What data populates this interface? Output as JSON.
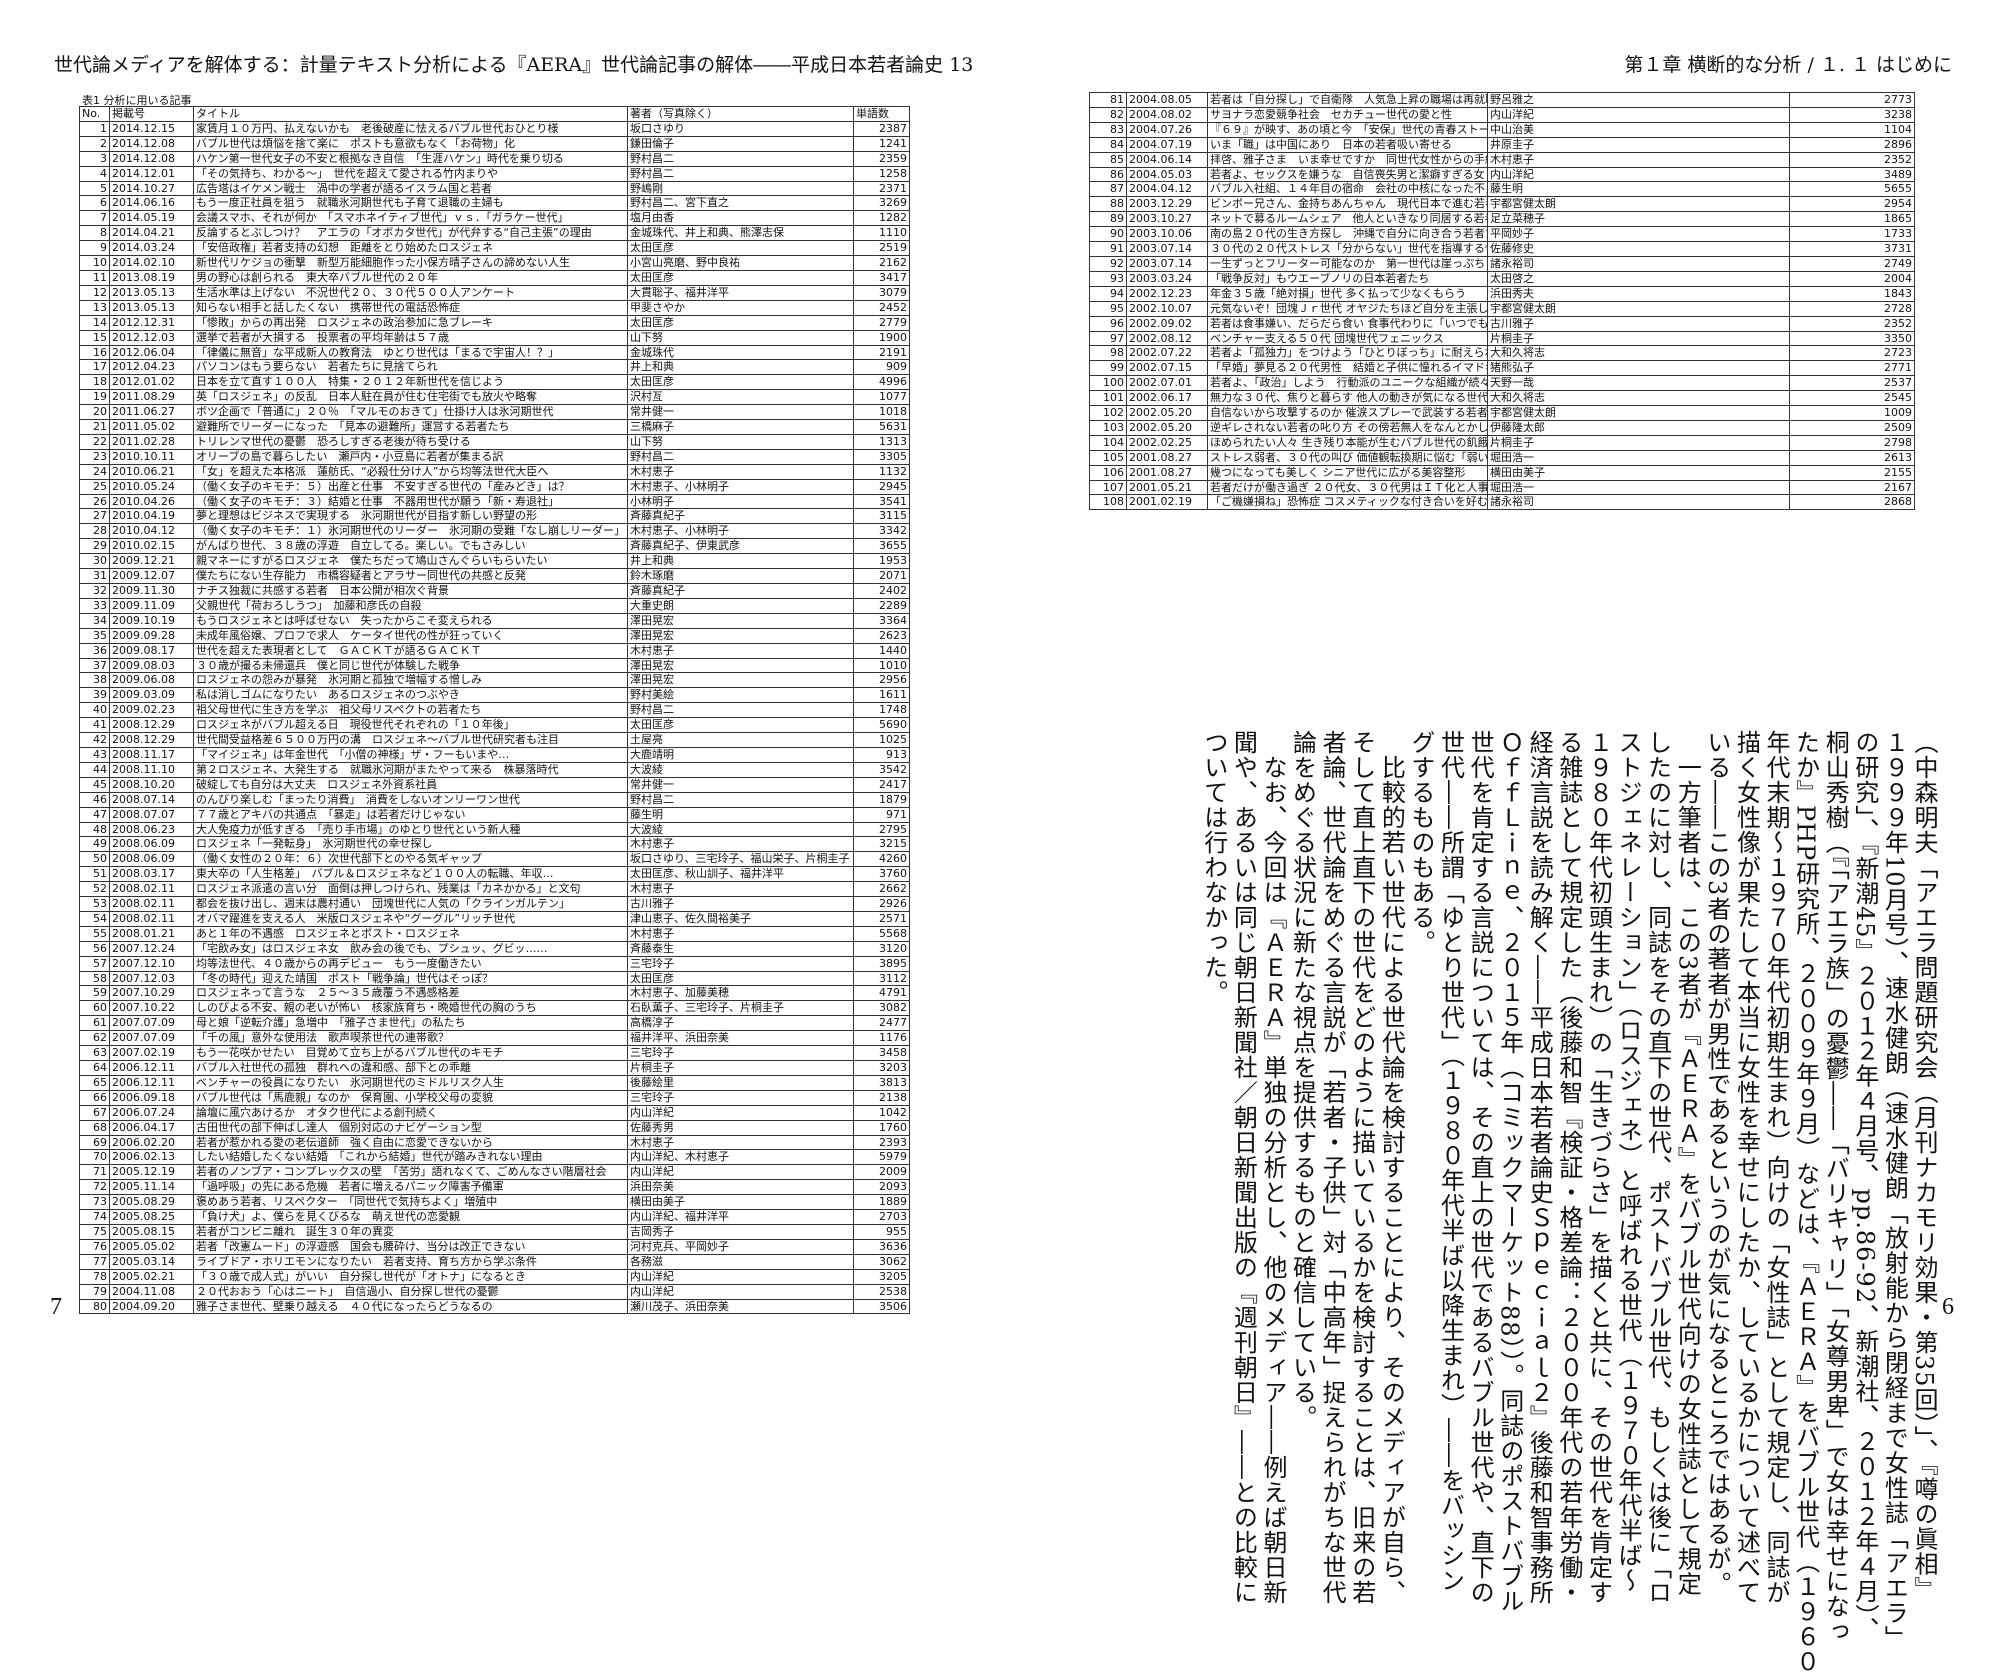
{
  "header": {
    "left": "世代論メディアを解体する：計量テキスト分析による『AERA』世代論記事の解体――平成日本若者論史 13",
    "right": "第１章 横断的な分析 / １. １ はじめに"
  },
  "page_numbers": {
    "left": "7",
    "right": "6"
  },
  "table": {
    "caption": "表1 分析に用いる記事",
    "columns": [
      "No.",
      "掲載号",
      "タイトル",
      "著者（写真除く）",
      "単語数"
    ],
    "rows": [
      [
        1,
        "2014.12.15",
        "家賃月１０万円、払えないかも　老後破産に怯えるバブル世代おひとり様",
        "坂口さゆり",
        2387
      ],
      [
        2,
        "2014.12.08",
        "バブル世代は煩悩を捨て楽に　ポストも意欲もなく「お荷物」化",
        "鎌田倫子",
        1241
      ],
      [
        3,
        "2014.12.08",
        "ハケン第一世代女子の不安と根拠なき自信　「生涯ハケン」時代を乗り切る",
        "野村昌二",
        2359
      ],
      [
        4,
        "2014.12.01",
        "「その気持ち、わかる～」　世代を超えて愛される竹内まりや",
        "野村昌二",
        1258
      ],
      [
        5,
        "2014.10.27",
        "広告塔はイケメン戦士　渦中の学者が語るイスラム国と若者",
        "野嶋剛",
        2371
      ],
      [
        6,
        "2014.06.16",
        "もう一度正社員を狙う　就職氷河期世代も子育て退職の主婦も",
        "野村昌二、宮下直之",
        3269
      ],
      [
        7,
        "2014.05.19",
        "会議スマホ、それが何か　「スマホネイティブ世代」ｖｓ．「ガラケー世代」",
        "塩月由香",
        1282
      ],
      [
        8,
        "2014.04.21",
        "反論するとぶしつけ？　アエラの「オボカタ世代」が代弁する“自己主張”の理由",
        "金城珠代、井上和典、熊澤志保",
        1110
      ],
      [
        9,
        "2014.03.24",
        "「安倍政権」若者支持の幻想　距離をとり始めたロスジェネ",
        "太田匡彦",
        2519
      ],
      [
        10,
        "2014.02.10",
        "新世代リケジョの衝撃　新型万能細胞作った小保方晴子さんの諦めない人生",
        "小宮山亮磨、野中良祐",
        2162
      ],
      [
        11,
        "2013.08.19",
        "男の野心は創られる　東大卒バブル世代の２０年",
        "太田匡彦",
        3417
      ],
      [
        12,
        "2013.05.13",
        "生活水準は上げない　不況世代２０、３０代５００人アンケート",
        "大貫聡子、福井洋平",
        3079
      ],
      [
        13,
        "2013.05.13",
        "知らない相手と話したくない　携帯世代の電話恐怖症",
        "甲斐さやか",
        2452
      ],
      [
        14,
        "2012.12.31",
        "「惨敗」からの再出発　ロスジェネの政治参加に急ブレーキ",
        "太田匡彦",
        2779
      ],
      [
        15,
        "2012.12.03",
        "選挙で若者が大損する　投票者の平均年齢は５７歳",
        "山下努",
        1900
      ],
      [
        16,
        "2012.06.04",
        "「律儀に無音」な平成新人の教育法　ゆとり世代は「まるで宇宙人！？」",
        "金城珠代",
        2191
      ],
      [
        17,
        "2012.04.23",
        "パソコンはもう要らない　若者たちに見捨てられ",
        "井上和典",
        909
      ],
      [
        18,
        "2012.01.02",
        "日本を立て直す１００人　特集・２０１２年新世代を信じよう",
        "太田匡彦",
        4996
      ],
      [
        19,
        "2011.08.29",
        "英「ロスジェネ」の反乱　日本人駐在員が住む住宅街でも放火や略奪",
        "沢村亙",
        1077
      ],
      [
        20,
        "2011.06.27",
        "ボツ企画で「普通に」２０％　「マルモのおきて」仕掛け人は氷河期世代",
        "常井健一",
        1018
      ],
      [
        21,
        "2011.05.02",
        "避難所でリーダーになった　「見本の避難所」運営する若者たち",
        "三橋麻子",
        5631
      ],
      [
        22,
        "2011.02.28",
        "トリレンマ世代の憂鬱　恐ろしすぎる老後が待ち受ける",
        "山下努",
        1313
      ],
      [
        23,
        "2010.10.11",
        "オリーブの島で暮らしたい　瀬戸内・小豆島に若者が集まる訳",
        "野村昌二",
        3305
      ],
      [
        24,
        "2010.06.21",
        "「女」を超えた本格派　蓮舫氏、“必殺仕分け人”から均等法世代大臣へ",
        "木村恵子",
        1132
      ],
      [
        25,
        "2010.05.24",
        "（働く女子のキモチ：５）出産と仕事　不安すぎる世代の「産みどき」は？",
        "木村恵子、小林明子",
        2945
      ],
      [
        26,
        "2010.04.26",
        "（働く女子のキモチ：３）結婚と仕事　不器用世代が願う「新・寿退社」",
        "小林明子",
        3541
      ],
      [
        27,
        "2010.04.19",
        "夢と理想はビジネスで実現する　氷河期世代が目指す新しい野望の形",
        "斉藤真紀子",
        3115
      ],
      [
        28,
        "2010.04.12",
        "（働く女子のキモチ：１）氷河期世代のリーダー　氷河期の受難「なし崩しリーダー」",
        "木村恵子、小林明子",
        3342
      ],
      [
        29,
        "2010.02.15",
        "がんばり世代、３８歳の浮遊　自立してる。楽しい。でもさみしい",
        "斉藤真紀子、伊東武彦",
        3655
      ],
      [
        30,
        "2009.12.21",
        "親マネーにすがるロスジェネ　僕たちだって鳩山さんぐらいもらいたい",
        "井上和典",
        1953
      ],
      [
        31,
        "2009.12.07",
        "僕たちにない生存能力　市橋容疑者とアラサー同世代の共感と反発",
        "鈴木琢磨",
        2071
      ],
      [
        32,
        "2009.11.30",
        "ナチス独裁に共感する若者　日本公開が相次ぐ背景",
        "斉藤真紀子",
        2402
      ],
      [
        33,
        "2009.11.09",
        "父親世代「荷おろしうつ」　加藤和彦氏の自殺",
        "大重史朗",
        2289
      ],
      [
        34,
        "2009.10.19",
        "もうロスジェネとは呼ばせない　失ったからこそ変えられる",
        "澤田晃宏",
        3364
      ],
      [
        35,
        "2009.09.28",
        "未成年風俗嬢、プロフで求人　ケータイ世代の性が狂っていく",
        "澤田晃宏",
        2623
      ],
      [
        36,
        "2009.08.17",
        "世代を超えた表現者として　ＧＡＣＫＴが語るＧＡＣＫＴ",
        "木村恵子",
        1440
      ],
      [
        37,
        "2009.08.03",
        "３０歳が撮る未帰還兵　僕と同じ世代が体験した戦争",
        "澤田晃宏",
        1010
      ],
      [
        38,
        "2009.06.08",
        "ロスジェネの怨みが暴発　氷河期と孤独で増幅する憎しみ",
        "澤田晃宏",
        2956
      ],
      [
        39,
        "2009.03.09",
        "私は消しゴムになりたい　あるロスジェネのつぶやき",
        "野村美絵",
        1611
      ],
      [
        40,
        "2009.02.23",
        "祖父母世代に生き方を学ぶ　祖父母リスペクトの若者たち",
        "野村昌二",
        1748
      ],
      [
        41,
        "2008.12.29",
        "ロスジェネがバブル超える日　現役世代それぞれの「１０年後」",
        "太田匡彦",
        5690
      ],
      [
        42,
        "2008.12.29",
        "世代間受益格差６５００万円の溝　ロスジェネ～バブル世代研究者も注目",
        "土屋亮",
        1025
      ],
      [
        43,
        "2008.11.17",
        "「マイジェネ」は年金世代　「小僧の神様」ザ・フーもいまや…",
        "大鹿靖明",
        913
      ],
      [
        44,
        "2008.11.10",
        "第２ロスジェネ、大発生する　就職氷河期がまたやって来る　株暴落時代",
        "大波綾",
        3542
      ],
      [
        45,
        "2008.10.20",
        "破綻しても自分は大丈夫　ロスジェネ外資系社員",
        "常井健一",
        2417
      ],
      [
        46,
        "2008.07.14",
        "のんびり楽しむ「まったり消費」　消費をしないオンリーワン世代",
        "野村昌二",
        1879
      ],
      [
        47,
        "2008.07.07",
        "７７歳とアキバの共通点　「暴走」は若者だけじゃない",
        "藤生明",
        971
      ],
      [
        48,
        "2008.06.23",
        "大人免疫力が低すぎる　「売り手市場」のゆとり世代という新人種",
        "大波綾",
        2795
      ],
      [
        49,
        "2008.06.09",
        "ロスジェネ「一発転身」　氷河期世代の幸せ探し",
        "木村恵子",
        3215
      ],
      [
        50,
        "2008.06.09",
        "（働く女性の２０年：６）次世代部下とのやる気ギャップ",
        "坂口さゆり、三宅玲子、福山栄子、片桐圭子",
        4260
      ],
      [
        51,
        "2008.03.17",
        "東大卒の「人生格差」　バブル＆ロスジェネなど１００人の転職、年収…",
        "太田匡彦、秋山訓子、福井洋平",
        3760
      ],
      [
        52,
        "2008.02.11",
        "ロスジェネ派遣の言い分　面倒は押しつけられ、残業は「カネかかる」と文句",
        "木村恵子",
        2662
      ],
      [
        53,
        "2008.02.11",
        "都会を抜け出し、週末は農村通い　団塊世代に人気の「クラインガルテン」",
        "古川雅子",
        2926
      ],
      [
        54,
        "2008.02.11",
        "オバマ躍進を支える人　米版ロスジェネや“グーグル”リッチ世代",
        "津山恵子、佐久間裕美子",
        2571
      ],
      [
        55,
        "2008.01.21",
        "あと１年の不遇感　ロスジェネとポスト・ロスジェネ",
        "木村恵子",
        5568
      ],
      [
        56,
        "2007.12.24",
        "「宅飲み女」はロスジェネ女　飲み会の後でも、プシュッ、グビッ……",
        "斉藤泰生",
        3120
      ],
      [
        57,
        "2007.12.10",
        "均等法世代、４０歳からの再デビュー　もう一度働きたい",
        "三宅玲子",
        3895
      ],
      [
        58,
        "2007.12.03",
        "「冬の時代」迎えた靖国　ポスト「戦争論」世代はそっぽ？",
        "太田匡彦",
        3112
      ],
      [
        59,
        "2007.10.29",
        "ロスジェネって言うな　２５～３５歳覆う不遇感格差",
        "木村恵子、加藤美穂",
        4791
      ],
      [
        60,
        "2007.10.22",
        "しのびよる不安、親の老いが怖い　核家族育ち・晩婚世代の胸のうち",
        "石臥薫子、三宅玲子、片桐圭子",
        3082
      ],
      [
        61,
        "2007.07.09",
        "母と娘「逆転介護」急増中　「雅子さま世代」の私たち",
        "高橋淳子",
        2477
      ],
      [
        62,
        "2007.07.09",
        "「千の風」意外な使用法　歌声喫茶世代の連帯歌？",
        "福井洋平、浜田奈美",
        1176
      ],
      [
        63,
        "2007.02.19",
        "もう一花咲かせたい　目覚めて立ち上がるバブル世代のキモチ",
        "三宅玲子",
        3458
      ],
      [
        64,
        "2006.12.11",
        "バブル入社世代の孤独　群れへの違和感、部下との乖離",
        "片桐圭子",
        3203
      ],
      [
        65,
        "2006.12.11",
        "ベンチャーの役員になりたい　氷河期世代のミドルリスク人生",
        "後藤絵里",
        3813
      ],
      [
        66,
        "2006.09.18",
        "バブル世代は「馬鹿親」なのか　保育園、小学校父母の変貌",
        "三宅玲子",
        2138
      ],
      [
        67,
        "2006.07.24",
        "論壇に風穴あけるか　オタク世代による創刊続く",
        "内山洋紀",
        1042
      ],
      [
        68,
        "2006.04.17",
        "古田世代の部下伸ばし達人　個別対応のナビゲーション型",
        "佐藤秀男",
        1760
      ],
      [
        69,
        "2006.02.20",
        "若者が惹かれる愛の老伝道師　強く自由に恋愛できないから",
        "木村恵子",
        2393
      ],
      [
        70,
        "2006.02.13",
        "したい結婚したくない結婚　「これから結婚」世代が踏みきれない理由",
        "内山洋紀、木村恵子",
        5979
      ],
      [
        71,
        "2005.12.19",
        "若者のノンブア・コンプレックスの壁　「苦労」語れなくて、ごめんなさい階層社会",
        "内山洋紀",
        2009
      ],
      [
        72,
        "2005.11.14",
        "「過呼吸」の先にある危機　若者に増えるパニック障害予備軍",
        "浜田奈美",
        2093
      ],
      [
        73,
        "2005.08.29",
        "褒めあう若者、リスペクター　「同世代で気持ちよく」増殖中",
        "横田由美子",
        1889
      ],
      [
        74,
        "2005.08.25",
        "「負け犬」よ、僕らを見くびるな　萌え世代の恋愛観",
        "内山洋紀、福井洋平",
        2703
      ],
      [
        75,
        "2005.08.15",
        "若者がコンビニ離れ　誕生３０年の異変",
        "吉岡秀子",
        955
      ],
      [
        76,
        "2005.05.02",
        "若者「改憲ムード」の浮遊感　国会も腰砕け、当分は改正できない",
        "河村克兵、平岡妙子",
        3636
      ],
      [
        77,
        "2005.03.14",
        "ライブドア・ホリエモンになりたい　若者支持、育ち方から学ぶ条件",
        "各務滋",
        3062
      ],
      [
        78,
        "2005.02.21",
        "「３０歳で成人式」がいい　自分探し世代が「オトナ」になるとき",
        "内山洋紀",
        3205
      ],
      [
        79,
        "2004.11.08",
        "２０代おおう「心はニート」　自信過小、自分探し世代の憂鬱",
        "内山洋紀",
        2538
      ],
      [
        80,
        "2004.09.20",
        "雅子さま世代、壁乗り越える　４０代になったらどうなるの",
        "瀬川茂子、浜田奈美",
        3506
      ],
      [
        81,
        "2004.08.05",
        "若者は「自分探し」で自衛隊　人気急上昇の職場は再就職も有利",
        "野呂雅之",
        2773
      ],
      [
        82,
        "2004.08.02",
        "サヨナラ恋愛競争社会　セカチュー世代の愛と性",
        "内山洋紀",
        3238
      ],
      [
        83,
        "2004.07.26",
        "『６９』が映す、あの頃と今　「安保」世代の青春ストーリー",
        "中山治美",
        1104
      ],
      [
        84,
        "2004.07.19",
        "いま「職」は中国にあり　日本の若者吸い寄せる",
        "井原圭子",
        2896
      ],
      [
        85,
        "2004.06.14",
        "拝啓、雅子さま　いま幸せですか　同世代女性からの手紙",
        "木村恵子",
        2352
      ],
      [
        86,
        "2004.05.03",
        "若者よ、セックスを嫌うな　自信喪失男と潔癖すぎる女",
        "内山洋紀",
        3489
      ],
      [
        87,
        "2004.04.12",
        "バブル入社組、１４年目の宿命　会社の中核になった不良烙印世代",
        "藤生明",
        5655
      ],
      [
        88,
        "2003.12.29",
        "ビンボー兄さん、金持ちあんちゃん　現代日本で進む若者の階層分化",
        "宇都宮健太朗",
        2954
      ],
      [
        89,
        "2003.10.27",
        "ネットで募るルームシェア　他人といきなり同居する若者たち",
        "足立菜穂子",
        1865
      ],
      [
        90,
        "2003.10.06",
        "南の島２０代の生き方探し　沖縄で自分に向き合う若者たち",
        "平岡妙子",
        1733
      ],
      [
        91,
        "2003.07.14",
        "３０代の２０代ストレス「分からない」世代を指導する悩み",
        "佐藤修史",
        3731
      ],
      [
        92,
        "2003.07.14",
        "一生ずっとフリーター可能なのか　第一世代は崖っぷち",
        "諸永裕司",
        2749
      ],
      [
        93,
        "2003.03.24",
        "「戦争反対」もウエーブノリの日本若者たち",
        "太田啓之",
        2004
      ],
      [
        94,
        "2002.12.23",
        "年金３５歳「絶対損」世代 多く払って少なくもらう",
        "浜田秀夫",
        1843
      ],
      [
        95,
        "2002.10.07",
        "元気ないぞ！団塊Ｊｒ世代 オヤジたちほど自分を主張しきれない",
        "宇都宮健太朗",
        2728
      ],
      [
        96,
        "2002.09.02",
        "若者は食事嫌い、だらだら食い 食事代わりに「いつでもお菓子」",
        "古川雅子",
        2352
      ],
      [
        97,
        "2002.08.12",
        "ベンチャー支える５０代 団塊世代フェニックス",
        "片桐圭子",
        3350
      ],
      [
        98,
        "2002.07.22",
        "若者よ「孤独力」をつけよう「ひとりぼっち」に耐えられない",
        "大和久将志",
        2723
      ],
      [
        99,
        "2002.07.15",
        "「早婚」夢見る２０代男性　結婚と子供に憧れるイマドキ若者",
        "猪熊弘子",
        2771
      ],
      [
        100,
        "2002.07.01",
        "若者よ、「政治」しよう　行動派のユニークな組織が続々",
        "天野一哉",
        2537
      ],
      [
        101,
        "2002.06.17",
        "無力な３０代、焦りと暮らす 他人の動きが気になる世代",
        "大和久将志",
        2545
      ],
      [
        102,
        "2002.05.20",
        "自信ないから攻撃するのか 催涙スプレーで武装する若者",
        "宇都宮健太朗",
        1009
      ],
      [
        103,
        "2002.05.20",
        "逆ギレされない若者の叱り方 その傍若無人をなんとかしたい",
        "伊藤隆太郎",
        2509
      ],
      [
        104,
        "2002.02.25",
        "ほめられたい人々 生き残り本能が生むバブル世代の飢餓感",
        "片桐圭子",
        2798
      ],
      [
        105,
        "2001.08.27",
        "ストレス弱者、３０代の叫び 価値観転換期に悩む「弱い世代」",
        "堀田浩一",
        2613
      ],
      [
        106,
        "2001.08.27",
        "幾つになっても美しく シニア世代に広がる美容整形",
        "横田由美子",
        2155
      ],
      [
        107,
        "2001.05.21",
        "若者だけが働き過ぎ ２０代女、３０代男はＩＴ化と人事の被害者",
        "堀田浩一",
        2167
      ],
      [
        108,
        "2001.02.19",
        "「ご機嫌損ね」恐怖症 コスメティックな付き合いを好む若者の心理",
        "諸永裕司",
        2868
      ]
    ]
  },
  "body_text": [
    "（中森明夫「アエラ問題研究会（月刊ナカモリ効果・第35回）」、『噂の眞相』",
    "１９９９年10月号）、速水健朗（速水健朗「放射能から閉経まで女性誌「アエラ」",
    "の研究」、『新潮45』２０１２年４月号、pp.86-92、新潮社、２０１２年４月）、",
    "桐山秀樹（『「アエラ族」の憂鬱――「バリキャリ」「女尊男卑」で女は幸せになっ",
    "たか』PHP研究所、２００９年９月）などは、『ＡＥＲＡ』をバブル世代（１９６０",
    "年代末期～１９７０年代初期生まれ）向けの「女性誌」として規定し、同誌が",
    "描く女性像が果たして本当に女性を幸せにしたか、しているかについて述べて",
    "いる――この3者の著者が男性であるというのが気になるところではあるが。",
    "　一方筆者は、この3者が『ＡＥＲＡ』をバブル世代向けの女性誌として規定",
    "したのに対し、同誌をその直下の世代、ポストバブル世代、もしくは後に「ロ",
    "ストジェネレーション」（ロスジェネ）と呼ばれる世代（１９７０年代半ば～",
    "１９８０年代初頭生まれ）の「生きづらさ」を描くと共に、その世代を肯定す",
    "る雑誌として規定した（後藤和智『検証・格差論：２０００年代の若年労働・",
    "経済言説を読み解く――平成日本若者論史Ｓｐｅｃｉａｌ２』後藤和智事務所",
    "ＯｆｆＬｉｎｅ、２０１５年（コミックマーケット88））。同誌のポストバブル",
    "世代を肯定する言説については、その直上の世代であるバブル世代や、直下の",
    "世代――所謂「ゆとり世代」（１９８０年代半ば以降生まれ）――をバッシン",
    "グするものもある。",
    "　比較的若い世代による世代論を検討することにより、そのメディアが自ら、",
    "そして直上直下の世代をどのように描いているかを検討することは、旧来の若",
    "者論、世代論をめぐる言説が「若者・子供」対「中高年」捉えられがちな世代",
    "論をめぐる状況に新たな視点を提供するものと確信している。",
    "　なお、今回は『ＡＥＲＡ』単独の分析とし、他のメディア――例えば朝日新",
    "聞や、あるいは同じ朝日新聞社／朝日新聞出版の『週刊朝日』――との比較に",
    "ついては行わなかった。"
  ]
}
